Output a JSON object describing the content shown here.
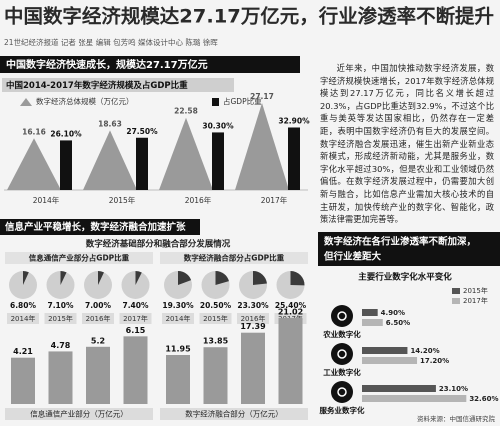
{
  "header": {
    "title": "中国数字经济规模达27.17万亿元，行业渗透率不断提升",
    "byline": "21世纪经济报道 记者 张星 编辑 包芳鸣  媒体设计中心 陈璐 徐晖"
  },
  "sections": [
    {
      "banner": "中国数字经济快速成长，规模达27.17万亿元"
    },
    {
      "banner": "信息产业平稳增长，数字经济融合加速扩张",
      "subtitle": "数字经济基础部分和融合部分发展情况"
    },
    {
      "banner": [
        "数字经济在各行业渗透率不断加深，",
        "但行业差距大"
      ]
    }
  ],
  "article": {
    "text": "近年来，中国加快推动数字经济发展，数字经济规模快速增长，2017年数字经济总体规模达到27.17万亿元，同比名义增长超过20.3%，占GDP比重达到32.9%，不过这个比重与美英等发达国家相比，仍然存在一定差距，表明中国数字经济仍有巨大的发展空间。数字经济融合发展迅速，催生出新产业新业态新模式，形成经济新动能，尤其是服务业，数字化水平超过30%，但是农业和工业领域仍然偏低。在数字经济发展过程中，仍需要加大创新与融合，比如信息产业需加大核心技术的自主研发，加快传统产业的数字化、智能化，政策法律需更加完善等。"
  },
  "chart_data": [
    {
      "type": "combo",
      "title": "中国2014-2017年数字经济规模及占GDP比重",
      "categories": [
        "2014年",
        "2015年",
        "2016年",
        "2017年"
      ],
      "series": [
        {
          "name": "数字经济总体规模（万亿元）",
          "color": "#9a9a9a",
          "values": [
            16.16,
            18.63,
            22.58,
            27.17
          ]
        },
        {
          "name": "占GDP比重",
          "color": "#111111",
          "values": [
            26.1,
            27.5,
            30.3,
            32.9
          ],
          "value_labels": [
            "26.10%",
            "27.50%",
            "30.30%",
            "32.90%"
          ]
        }
      ]
    },
    {
      "type": "pie",
      "title": "信息通信产业部分占GDP比重",
      "color": "#3a3a3a",
      "categories": [
        "2014年",
        "2015年",
        "2016年",
        "2017年"
      ],
      "values": [
        6.8,
        7.1,
        7.0,
        7.4
      ],
      "value_labels": [
        "6.80%",
        "7.10%",
        "7.00%",
        "7.40%"
      ]
    },
    {
      "type": "bar",
      "title": "信息通信产业部分（万亿元）",
      "color": "#9a9a9a",
      "values": [
        4.21,
        4.78,
        5.2,
        6.15
      ]
    },
    {
      "type": "pie",
      "title": "数字经济融合部分占GDP比重",
      "color": "#3a3a3a",
      "categories": [
        "2014年",
        "2015年",
        "2016年",
        "2017年"
      ],
      "values": [
        19.3,
        20.5,
        23.3,
        25.4
      ],
      "value_labels": [
        "19.30%",
        "20.50%",
        "23.30%",
        "25.40%"
      ]
    },
    {
      "type": "bar",
      "title": "数字经济融合部分（万亿元）",
      "color": "#9a9a9a",
      "values": [
        11.95,
        13.85,
        17.39,
        21.02
      ]
    },
    {
      "type": "hbar",
      "title": "主要行业数字化水平变化",
      "categories": [
        "农业数字化",
        "工业数字化",
        "服务业数字化"
      ],
      "series": [
        {
          "name": "2015年",
          "color": "#555555",
          "values": [
            4.9,
            14.2,
            23.1
          ],
          "value_labels": [
            "4.90%",
            "14.20%",
            "23.10%"
          ]
        },
        {
          "name": "2017年",
          "color": "#b5b5b5",
          "values": [
            6.5,
            17.2,
            32.6
          ],
          "value_labels": [
            "6.50%",
            "17.20%",
            "32.60%"
          ]
        }
      ]
    }
  ],
  "source": "资料来源：中国信通研究院"
}
